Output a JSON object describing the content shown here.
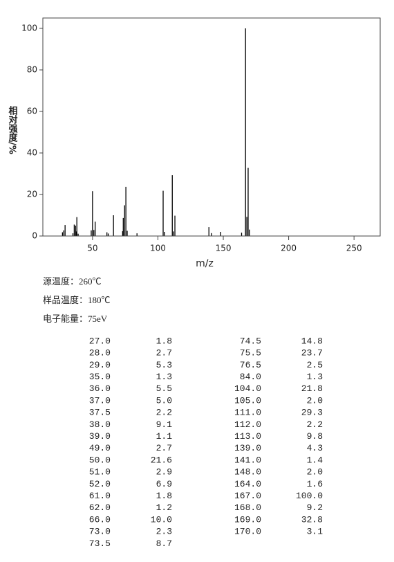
{
  "chart_data": {
    "type": "stem",
    "x_label": "m/z",
    "y_label": "相对强度/%",
    "x": [
      27.0,
      28.0,
      29.0,
      35.0,
      36.0,
      37.0,
      37.5,
      38.0,
      39.0,
      49.0,
      50.0,
      51.0,
      52.0,
      61.0,
      62.0,
      66.0,
      73.0,
      73.5,
      74.5,
      75.5,
      76.5,
      84.0,
      104.0,
      105.0,
      111.0,
      112.0,
      113.0,
      139.0,
      141.0,
      148.0,
      164.0,
      167.0,
      168.0,
      169.0,
      170.0
    ],
    "values": [
      1.8,
      2.7,
      5.3,
      1.3,
      5.5,
      5.0,
      2.2,
      9.1,
      1.1,
      2.7,
      21.6,
      2.9,
      6.9,
      1.8,
      1.2,
      10.0,
      2.3,
      8.7,
      14.8,
      23.7,
      2.5,
      1.3,
      21.8,
      2.0,
      29.3,
      2.2,
      9.8,
      4.3,
      1.4,
      2.0,
      1.6,
      100.0,
      9.2,
      32.8,
      3.1
    ],
    "color": "#000000",
    "xlim": [
      12,
      270
    ],
    "xticks": [
      50,
      100,
      150,
      200,
      250
    ],
    "ylim": [
      0,
      105
    ],
    "yticks": [
      0,
      20,
      40,
      60,
      80,
      100
    ]
  },
  "conditions": [
    "源温度：260℃",
    "样品温度：180℃",
    "电子能量：75eV"
  ],
  "table": {
    "rows": [
      [
        "27.0",
        "1.8"
      ],
      [
        "28.0",
        "2.7"
      ],
      [
        "29.0",
        "5.3"
      ],
      [
        "35.0",
        "1.3"
      ],
      [
        "36.0",
        "5.5"
      ],
      [
        "37.0",
        "5.0"
      ],
      [
        "37.5",
        "2.2"
      ],
      [
        "38.0",
        "9.1"
      ],
      [
        "39.0",
        "1.1"
      ],
      [
        "49.0",
        "2.7"
      ],
      [
        "50.0",
        "21.6"
      ],
      [
        "51.0",
        "2.9"
      ],
      [
        "52.0",
        "6.9"
      ],
      [
        "61.0",
        "1.8"
      ],
      [
        "62.0",
        "1.2"
      ],
      [
        "66.0",
        "10.0"
      ],
      [
        "73.0",
        "2.3"
      ],
      [
        "73.5",
        "8.7"
      ],
      [
        "74.5",
        "14.8"
      ],
      [
        "75.5",
        "23.7"
      ],
      [
        "76.5",
        "2.5"
      ],
      [
        "84.0",
        "1.3"
      ],
      [
        "104.0",
        "21.8"
      ],
      [
        "105.0",
        "2.0"
      ],
      [
        "111.0",
        "29.3"
      ],
      [
        "112.0",
        "2.2"
      ],
      [
        "113.0",
        "9.8"
      ],
      [
        "139.0",
        "4.3"
      ],
      [
        "141.0",
        "1.4"
      ],
      [
        "148.0",
        "2.0"
      ],
      [
        "164.0",
        "1.6"
      ],
      [
        "167.0",
        "100.0"
      ],
      [
        "168.0",
        "9.2"
      ],
      [
        "169.0",
        "32.8"
      ],
      [
        "170.0",
        "3.1"
      ]
    ]
  }
}
